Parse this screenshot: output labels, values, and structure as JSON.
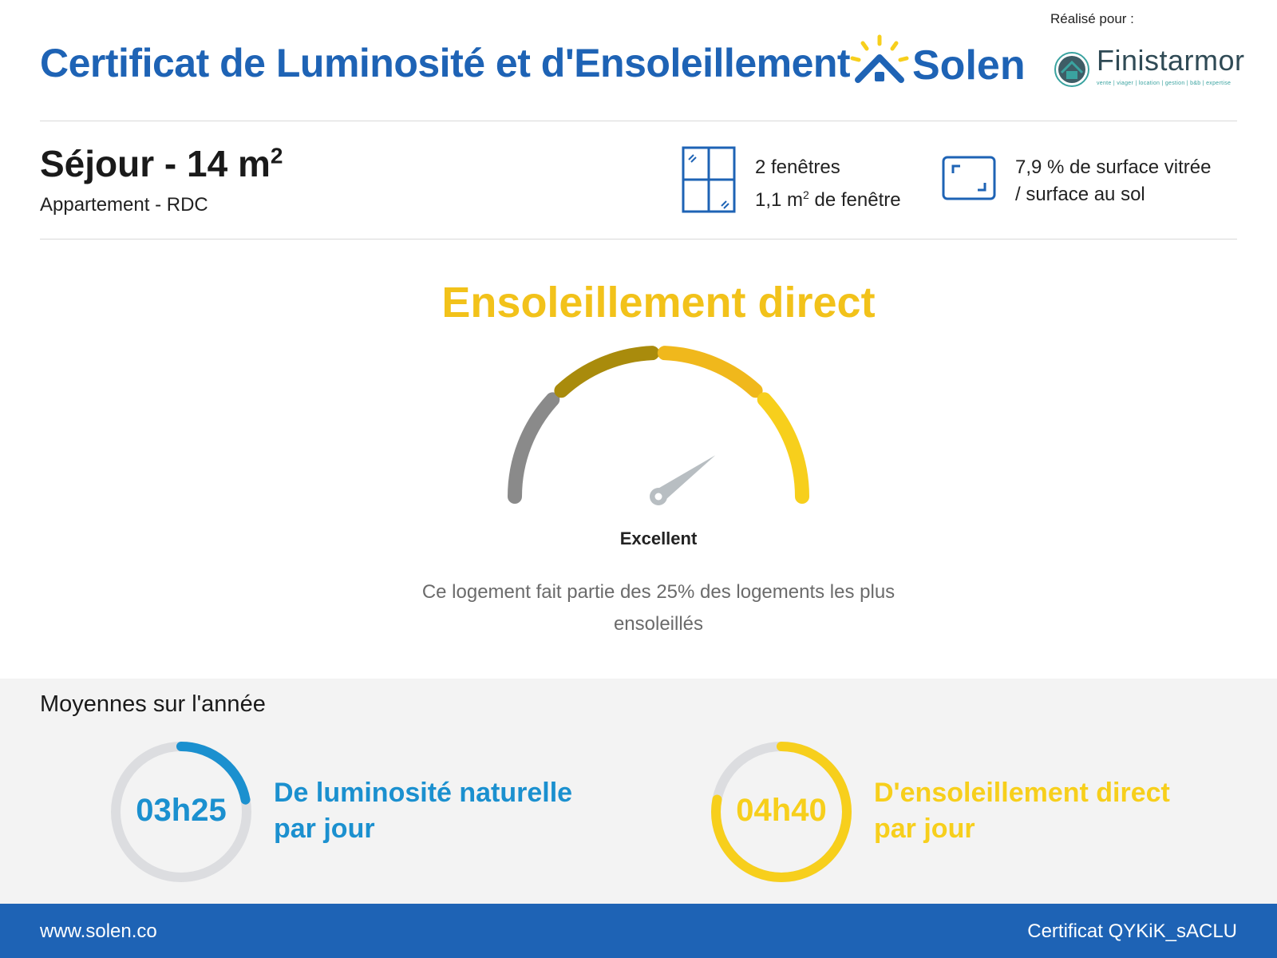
{
  "header": {
    "title": "Certificat de Luminosité et d'Ensoleillement",
    "brand": "Solen",
    "realise_pour": "Réalisé pour :",
    "partner_name": "Finistarmor",
    "partner_tagline": "vente | viager | location | gestion | b&b | expertise"
  },
  "room": {
    "title": "Séjour - 14 m",
    "title_sup": "2",
    "subtitle": "Appartement - RDC",
    "windows_line1": "2 fenêtres",
    "windows_line2_pre": "1,1 m",
    "windows_line2_sup": "2",
    "windows_line2_post": " de fenêtre",
    "surface_line1": "7,9 % de surface vitrée",
    "surface_line2": "/ surface au sol"
  },
  "gauge": {
    "heading": "Ensoleillement direct",
    "rating": "Excellent",
    "description": "Ce logement fait partie des 25% des logements les plus ensoleillés",
    "level": 0.8,
    "segments": [
      {
        "color": "#8a8a8a"
      },
      {
        "color": "#a98b0c"
      },
      {
        "color": "#f0b81c"
      },
      {
        "color": "#f7cf1c"
      }
    ]
  },
  "averages": {
    "title": "Moyennes sur l'année",
    "items": [
      {
        "value": "03h25",
        "line1": "De luminosité naturelle",
        "line2": "par jour",
        "color": "#1b90cf",
        "fraction": 0.22
      },
      {
        "value": "04h40",
        "line1": "D'ensoleillement direct",
        "line2": "par jour",
        "color": "#f7cf1c",
        "fraction": 0.78
      }
    ]
  },
  "footer": {
    "website": "www.solen.co",
    "certificate": "Certificat QYKiK_sACLU"
  }
}
